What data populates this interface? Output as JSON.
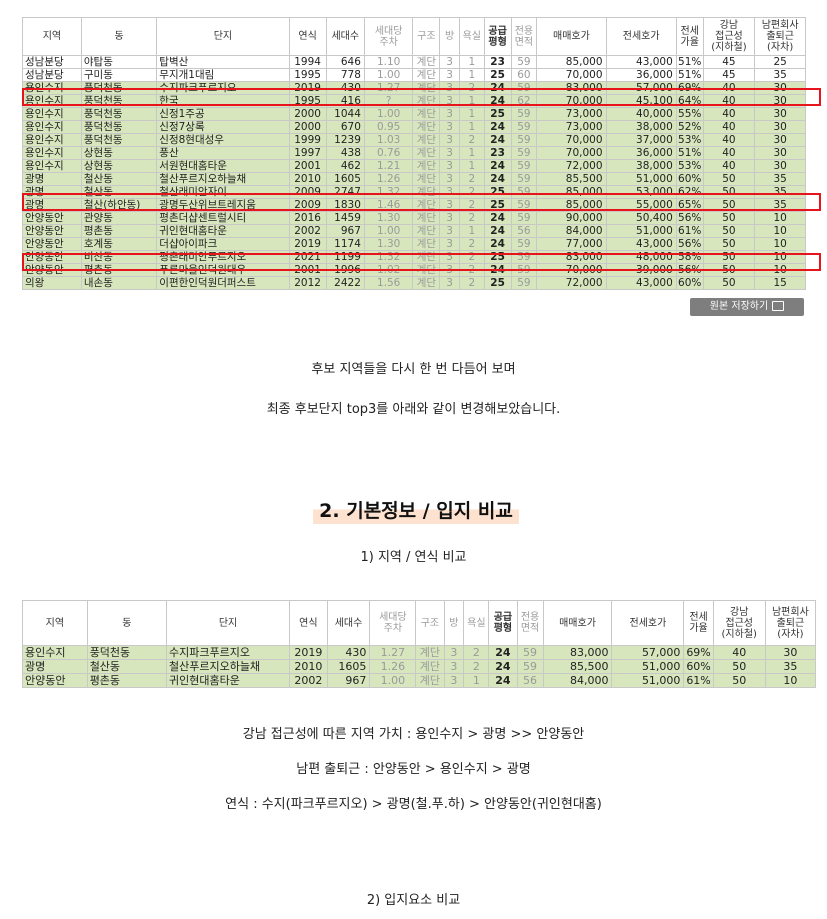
{
  "table1": {
    "headers": {
      "region": "지역",
      "dong": "동",
      "complex": "단지",
      "year": "연식",
      "households": "세대수",
      "parking_1": "세대당",
      "parking_2": "주차",
      "structure": "구조",
      "rooms": "방",
      "baths": "욕실",
      "supply_1": "공급",
      "supply_2": "평형",
      "exclusive_1": "전용",
      "exclusive_2": "면적",
      "sale": "매매호가",
      "jeonse": "전세호가",
      "ratio_1": "전세",
      "ratio_2": "가율",
      "gangnam_1": "강남",
      "gangnam_2": "접근성",
      "gangnam_3": "(지하철)",
      "commute_1": "남편회사",
      "commute_2": "출퇴근",
      "commute_3": "(자차)"
    },
    "rows": [
      {
        "region": "성남분당",
        "dong": "야탑동",
        "complex": "탑벽산",
        "year": "1994",
        "households": "646",
        "parking": "1.10",
        "structure": "계단",
        "rooms": "3",
        "baths": "1",
        "supply": "23",
        "exclusive": "59",
        "sale": "85,000",
        "jeonse": "43,000",
        "ratio": "51%",
        "gangnam": "45",
        "commute": "25"
      },
      {
        "region": "성남분당",
        "dong": "구미동",
        "complex": "무지개1대림",
        "year": "1995",
        "households": "778",
        "parking": "1.00",
        "structure": "계단",
        "rooms": "3",
        "baths": "1",
        "supply": "25",
        "exclusive": "60",
        "sale": "70,000",
        "jeonse": "36,000",
        "ratio": "51%",
        "gangnam": "45",
        "commute": "35"
      },
      {
        "region": "용인수지",
        "dong": "풍덕천동",
        "complex": "수지파크푸르지오",
        "year": "2019",
        "households": "430",
        "parking": "1.27",
        "structure": "계단",
        "rooms": "3",
        "baths": "2",
        "supply": "24",
        "exclusive": "59",
        "sale": "83,000",
        "jeonse": "57,000",
        "ratio": "69%",
        "gangnam": "40",
        "commute": "30"
      },
      {
        "region": "용인수지",
        "dong": "풍덕천동",
        "complex": "한국",
        "year": "1995",
        "households": "416",
        "parking": "?",
        "structure": "계단",
        "rooms": "3",
        "baths": "1",
        "supply": "24",
        "exclusive": "62",
        "sale": "70,000",
        "jeonse": "45,100",
        "ratio": "64%",
        "gangnam": "40",
        "commute": "30"
      },
      {
        "region": "용인수지",
        "dong": "풍덕천동",
        "complex": "신정1주공",
        "year": "2000",
        "households": "1044",
        "parking": "1.00",
        "structure": "계단",
        "rooms": "3",
        "baths": "1",
        "supply": "25",
        "exclusive": "59",
        "sale": "73,000",
        "jeonse": "40,000",
        "ratio": "55%",
        "gangnam": "40",
        "commute": "30"
      },
      {
        "region": "용인수지",
        "dong": "풍덕천동",
        "complex": "신정7상록",
        "year": "2000",
        "households": "670",
        "parking": "0.95",
        "structure": "계단",
        "rooms": "3",
        "baths": "1",
        "supply": "24",
        "exclusive": "59",
        "sale": "73,000",
        "jeonse": "38,000",
        "ratio": "52%",
        "gangnam": "40",
        "commute": "30"
      },
      {
        "region": "용인수지",
        "dong": "풍덕천동",
        "complex": "신정8현대성우",
        "year": "1999",
        "households": "1239",
        "parking": "1.03",
        "structure": "계단",
        "rooms": "3",
        "baths": "2",
        "supply": "24",
        "exclusive": "59",
        "sale": "70,000",
        "jeonse": "37,000",
        "ratio": "53%",
        "gangnam": "40",
        "commute": "30"
      },
      {
        "region": "용인수지",
        "dong": "상현동",
        "complex": "풍산",
        "year": "1997",
        "households": "438",
        "parking": "0.76",
        "structure": "계단",
        "rooms": "3",
        "baths": "1",
        "supply": "23",
        "exclusive": "59",
        "sale": "70,000",
        "jeonse": "36,000",
        "ratio": "51%",
        "gangnam": "40",
        "commute": "30"
      },
      {
        "region": "용인수지",
        "dong": "상현동",
        "complex": "서원현대홈타운",
        "year": "2001",
        "households": "462",
        "parking": "1.21",
        "structure": "계단",
        "rooms": "3",
        "baths": "1",
        "supply": "24",
        "exclusive": "59",
        "sale": "72,000",
        "jeonse": "38,000",
        "ratio": "53%",
        "gangnam": "40",
        "commute": "30"
      },
      {
        "region": "광명",
        "dong": "철산동",
        "complex": "철산푸르지오하늘채",
        "year": "2010",
        "households": "1605",
        "parking": "1.26",
        "structure": "계단",
        "rooms": "3",
        "baths": "2",
        "supply": "24",
        "exclusive": "59",
        "sale": "85,500",
        "jeonse": "51,000",
        "ratio": "60%",
        "gangnam": "50",
        "commute": "35"
      },
      {
        "region": "광명",
        "dong": "철산동",
        "complex": "철산래미안자이",
        "year": "2009",
        "households": "2747",
        "parking": "1.32",
        "structure": "계단",
        "rooms": "3",
        "baths": "2",
        "supply": "25",
        "exclusive": "59",
        "sale": "85,000",
        "jeonse": "53,000",
        "ratio": "62%",
        "gangnam": "50",
        "commute": "35"
      },
      {
        "region": "광명",
        "dong": "철산(하안동)",
        "complex": "광명두산위브트레지움",
        "year": "2009",
        "households": "1830",
        "parking": "1.46",
        "structure": "계단",
        "rooms": "3",
        "baths": "2",
        "supply": "25",
        "exclusive": "59",
        "sale": "85,000",
        "jeonse": "55,000",
        "ratio": "65%",
        "gangnam": "50",
        "commute": "35"
      },
      {
        "region": "안양동안",
        "dong": "관양동",
        "complex": "평촌더샵센트럴시티",
        "year": "2016",
        "households": "1459",
        "parking": "1.30",
        "structure": "계단",
        "rooms": "3",
        "baths": "2",
        "supply": "24",
        "exclusive": "59",
        "sale": "90,000",
        "jeonse": "50,400",
        "ratio": "56%",
        "gangnam": "50",
        "commute": "10"
      },
      {
        "region": "안양동안",
        "dong": "평촌동",
        "complex": "귀인현대홈타운",
        "year": "2002",
        "households": "967",
        "parking": "1.00",
        "structure": "계단",
        "rooms": "3",
        "baths": "1",
        "supply": "24",
        "exclusive": "56",
        "sale": "84,000",
        "jeonse": "51,000",
        "ratio": "61%",
        "gangnam": "50",
        "commute": "10"
      },
      {
        "region": "안양동안",
        "dong": "호계동",
        "complex": "더샵아이파크",
        "year": "2019",
        "households": "1174",
        "parking": "1.30",
        "structure": "계단",
        "rooms": "3",
        "baths": "2",
        "supply": "24",
        "exclusive": "59",
        "sale": "77,000",
        "jeonse": "43,000",
        "ratio": "56%",
        "gangnam": "50",
        "commute": "10"
      },
      {
        "region": "안양동안",
        "dong": "비산동",
        "complex": "평촌래미안푸르지오",
        "year": "2021",
        "households": "1199",
        "parking": "1.32",
        "structure": "계단",
        "rooms": "3",
        "baths": "2",
        "supply": "25",
        "exclusive": "59",
        "sale": "83,000",
        "jeonse": "48,000",
        "ratio": "58%",
        "gangnam": "50",
        "commute": "10"
      },
      {
        "region": "안양동안",
        "dong": "평촌동",
        "complex": "푸른마을인덕원대우",
        "year": "2001",
        "households": "1996",
        "parking": "1.02",
        "structure": "계단",
        "rooms": "3",
        "baths": "2",
        "supply": "24",
        "exclusive": "59",
        "sale": "70,000",
        "jeonse": "39,000",
        "ratio": "56%",
        "gangnam": "50",
        "commute": "10"
      },
      {
        "region": "의왕",
        "dong": "내손동",
        "complex": "이편한인덕원더퍼스트",
        "year": "2012",
        "households": "2422",
        "parking": "1.56",
        "structure": "계단",
        "rooms": "3",
        "baths": "2",
        "supply": "25",
        "exclusive": "59",
        "sale": "72,000",
        "jeonse": "43,000",
        "ratio": "60%",
        "gangnam": "50",
        "commute": "15"
      }
    ],
    "save_original_label": "원본 저장하기"
  },
  "text1_line1": "후보 지역들을 다시 한 번 다듬어 보며",
  "text1_line2": "최종 후보단지 top3를 아래와 같이 변경해보았습니다.",
  "section_heading": "2. 기본정보 / 입지 비교",
  "sub_heading_1": "1) 지역 / 연식 비교",
  "table2": {
    "rows": [
      {
        "region": "용인수지",
        "dong": "풍덕천동",
        "complex": "수지파크푸르지오",
        "year": "2019",
        "households": "430",
        "parking": "1.27",
        "structure": "계단",
        "rooms": "3",
        "baths": "2",
        "supply": "24",
        "exclusive": "59",
        "sale": "83,000",
        "jeonse": "57,000",
        "ratio": "69%",
        "gangnam": "40",
        "commute": "30"
      },
      {
        "region": "광명",
        "dong": "철산동",
        "complex": "철산푸르지오하늘채",
        "year": "2010",
        "households": "1605",
        "parking": "1.26",
        "structure": "계단",
        "rooms": "3",
        "baths": "2",
        "supply": "24",
        "exclusive": "59",
        "sale": "85,500",
        "jeonse": "51,000",
        "ratio": "60%",
        "gangnam": "50",
        "commute": "35"
      },
      {
        "region": "안양동안",
        "dong": "평촌동",
        "complex": "귀인현대홈타운",
        "year": "2002",
        "households": "967",
        "parking": "1.00",
        "structure": "계단",
        "rooms": "3",
        "baths": "1",
        "supply": "24",
        "exclusive": "56",
        "sale": "84,000",
        "jeonse": "51,000",
        "ratio": "61%",
        "gangnam": "50",
        "commute": "10"
      }
    ]
  },
  "compare_line1": "강남 접근성에 따른 지역 가치 :  용인수지 > 광명 >> 안양동안",
  "compare_line2": "남편 출퇴근  :  안양동안 > 용인수지 > 광명",
  "compare_line3": "연식 :  수지(파크푸르지오) > 광명(철.푸.하) > 안양동안(귀인현대홈)",
  "sub_heading_2": "2) 입지요소 비교"
}
